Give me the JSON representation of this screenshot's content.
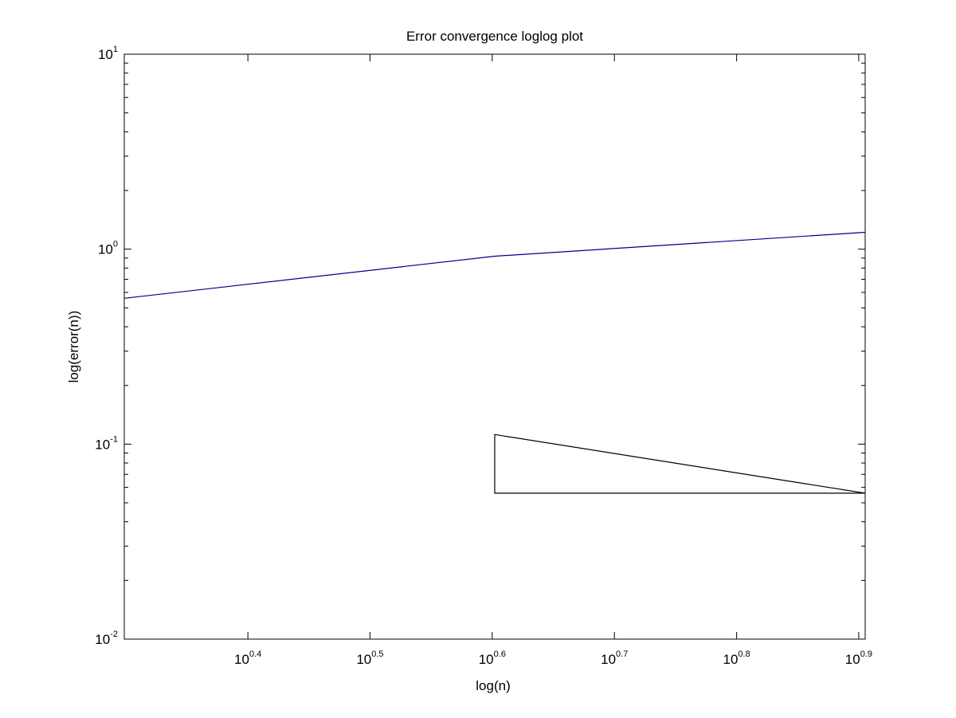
{
  "chart_data": {
    "type": "line",
    "title": "Error convergence loglog plot",
    "xlabel": "log(n)",
    "ylabel": "log(error(n))",
    "x_scale": "log",
    "y_scale": "log",
    "xlim": [
      1.99,
      8.04
    ],
    "ylim": [
      0.01,
      10
    ],
    "grid": false,
    "x_ticks": [
      {
        "base": "10",
        "exp": "0.4",
        "value": 2.512
      },
      {
        "base": "10",
        "exp": "0.5",
        "value": 3.162
      },
      {
        "base": "10",
        "exp": "0.6",
        "value": 3.981
      },
      {
        "base": "10",
        "exp": "0.7",
        "value": 5.012
      },
      {
        "base": "10",
        "exp": "0.8",
        "value": 6.31
      },
      {
        "base": "10",
        "exp": "0.9",
        "value": 7.943
      }
    ],
    "y_ticks": [
      {
        "base": "10",
        "exp": "-2",
        "value": 0.01
      },
      {
        "base": "10",
        "exp": "-1",
        "value": 0.1
      },
      {
        "base": "10",
        "exp": "0",
        "value": 1
      },
      {
        "base": "10",
        "exp": "1",
        "value": 10
      }
    ],
    "series": [
      {
        "color": "#00008b",
        "x": [
          1.99,
          4.0,
          8.04
        ],
        "y": [
          0.56,
          0.92,
          1.22
        ]
      },
      {
        "color": "#000000",
        "closed": true,
        "x": [
          4.0,
          4.0,
          8.04
        ],
        "y": [
          0.112,
          0.056,
          0.056
        ]
      }
    ]
  }
}
